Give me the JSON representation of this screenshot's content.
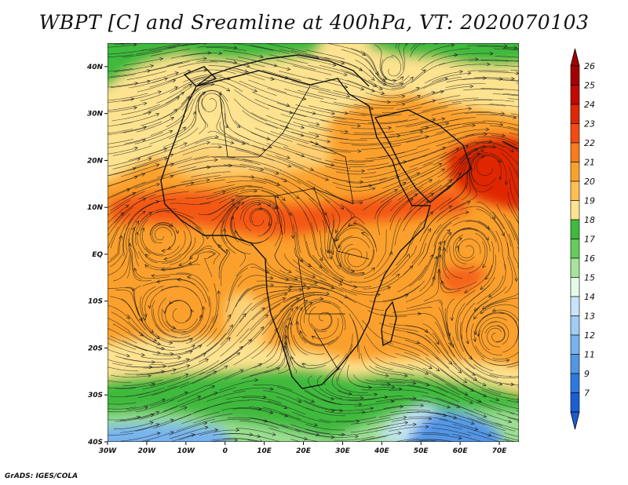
{
  "title": "WBPT [C] and Sreamline at 400hPa, VT: 2020070103",
  "footer": "GrADS: IGES/COLA",
  "map": {
    "lon_range": [
      -30,
      75
    ],
    "lat_range": [
      -40,
      45
    ],
    "lat_ticks": [
      {
        "value": 40,
        "label": "40N"
      },
      {
        "value": 30,
        "label": "30N"
      },
      {
        "value": 20,
        "label": "20N"
      },
      {
        "value": 10,
        "label": "10N"
      },
      {
        "value": 0,
        "label": "EQ"
      },
      {
        "value": -10,
        "label": "10S"
      },
      {
        "value": -20,
        "label": "20S"
      },
      {
        "value": -30,
        "label": "30S"
      },
      {
        "value": -40,
        "label": "40S"
      }
    ],
    "lon_ticks": [
      {
        "value": -30,
        "label": "30W"
      },
      {
        "value": -20,
        "label": "20W"
      },
      {
        "value": -10,
        "label": "10W"
      },
      {
        "value": 0,
        "label": "0"
      },
      {
        "value": 10,
        "label": "10E"
      },
      {
        "value": 20,
        "label": "20E"
      },
      {
        "value": 30,
        "label": "30E"
      },
      {
        "value": 40,
        "label": "40E"
      },
      {
        "value": 50,
        "label": "50E"
      },
      {
        "value": 60,
        "label": "60E"
      },
      {
        "value": 70,
        "label": "70E"
      }
    ]
  },
  "colorbar": {
    "levels": [
      {
        "label": "26",
        "color": "#a50000"
      },
      {
        "label": "25",
        "color": "#c40a00"
      },
      {
        "label": "24",
        "color": "#e02800"
      },
      {
        "label": "23",
        "color": "#f24a12"
      },
      {
        "label": "22",
        "color": "#fa7a1e"
      },
      {
        "label": "21",
        "color": "#fba02c"
      },
      {
        "label": "20",
        "color": "#fbbf52"
      },
      {
        "label": "19",
        "color": "#fde390"
      },
      {
        "label": "18",
        "color": "#3fba3c"
      },
      {
        "label": "17",
        "color": "#66cc5c"
      },
      {
        "label": "16",
        "color": "#a6e39b"
      },
      {
        "label": "15",
        "color": "#e6fae8"
      },
      {
        "label": "14",
        "color": "#c8e4fa"
      },
      {
        "label": "13",
        "color": "#a0cdf5"
      },
      {
        "label": "12",
        "color": "#78b3ee"
      },
      {
        "label": "11",
        "color": "#5296e6"
      },
      {
        "label": "9",
        "color": "#2f78dc"
      },
      {
        "label": "7",
        "color": "#1a5ed1"
      }
    ],
    "top_arrow_color": "#a50000",
    "bottom_arrow_color": "#1a5ed1"
  },
  "palette": {
    "orange": "#fba02c",
    "light_orange": "#fbbf52",
    "yellow": "#fde390",
    "red_orange": "#f24a12",
    "red": "#e02800",
    "green": "#3fba3c",
    "light_green": "#66cc5c",
    "pale_green": "#a6e39b",
    "blue": "#78b3ee",
    "pale_blue": "#c8e4fa"
  }
}
